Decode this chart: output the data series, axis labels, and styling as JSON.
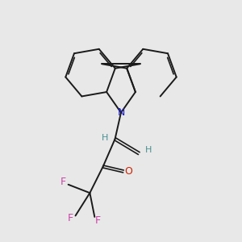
{
  "background_color": "#e8e8e8",
  "bond_color": "#1a1a1a",
  "nitrogen_color": "#2020cc",
  "oxygen_color": "#cc2200",
  "fluorine_color": "#cc44aa",
  "hydrogen_color": "#4a9090",
  "figsize": [
    3.0,
    3.0
  ],
  "dpi": 100,
  "xlim": [
    0,
    10
  ],
  "ylim": [
    0,
    10
  ]
}
